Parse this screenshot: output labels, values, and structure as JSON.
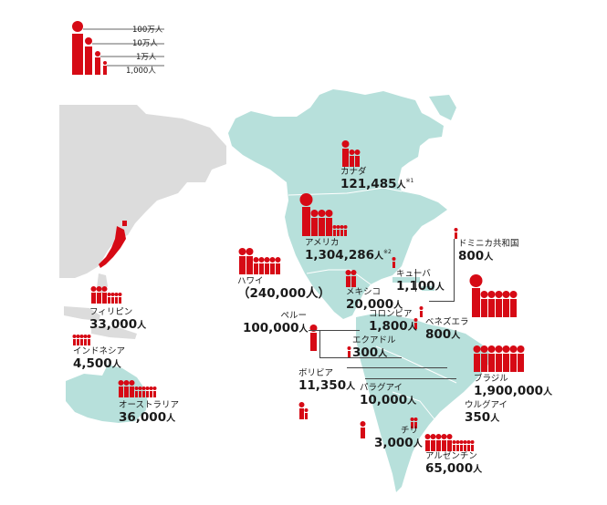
{
  "colors": {
    "person": "#d60a15",
    "americas": "#b7e0db",
    "asia": "#dcdcdc",
    "japan": "#d60a15",
    "ink": "#1a1a1a"
  },
  "legend": [
    {
      "unit": "million",
      "label": "100万人"
    },
    {
      "unit": "hundred_thousand",
      "label": "10万人"
    },
    {
      "unit": "ten_thousand",
      "label": "1万人"
    },
    {
      "unit": "thousand",
      "label": "1,000人"
    }
  ],
  "countries": {
    "canada": {
      "name": "カナダ",
      "number": "121,485",
      "unit": "人",
      "note": "※1"
    },
    "usa": {
      "name": "アメリカ",
      "number": "1,304,286",
      "unit": "人",
      "note": "※2"
    },
    "hawaii": {
      "name": "ハワイ",
      "number": "（240,000人）"
    },
    "mexico": {
      "name": "メキシコ",
      "number": "20,000",
      "unit": "人"
    },
    "dominican": {
      "name": "ドミニカ共和国",
      "number": "800",
      "unit": "人"
    },
    "cuba": {
      "name": "キューバ",
      "number": "1,100",
      "unit": "人"
    },
    "colombia": {
      "name": "コロンビア",
      "number": "1,800",
      "unit": "人"
    },
    "venezuela": {
      "name": "ベネズエラ",
      "number": "800",
      "unit": "人"
    },
    "peru": {
      "name": "ペルー",
      "number": "100,000",
      "unit": "人"
    },
    "ecuador": {
      "name": "エクアドル",
      "number": "300",
      "unit": "人"
    },
    "brazil": {
      "name": "ブラジル",
      "number": "1,900,000",
      "unit": "人"
    },
    "bolivia": {
      "name": "ボリビア",
      "number": "11,350",
      "unit": "人"
    },
    "paraguay": {
      "name": "パラグアイ",
      "number": "10,000",
      "unit": "人"
    },
    "uruguay": {
      "name": "ウルグアイ",
      "number": "350",
      "unit": "人"
    },
    "chile": {
      "name": "チリ",
      "number": "3,000",
      "unit": "人"
    },
    "argentina": {
      "name": "アルゼンチン",
      "number": "65,000",
      "unit": "人"
    },
    "philippines": {
      "name": "フィリピン",
      "number": "33,000",
      "unit": "人"
    },
    "indonesia": {
      "name": "インドネシア",
      "number": "4,500",
      "unit": "人"
    },
    "australia": {
      "name": "オーストラリア",
      "number": "36,000",
      "unit": "人"
    }
  }
}
